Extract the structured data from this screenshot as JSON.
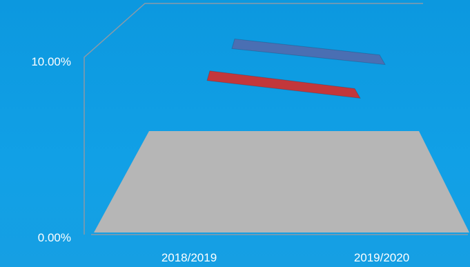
{
  "chart_data": {
    "type": "line",
    "categories": [
      "2018/2019",
      "2019/2020"
    ],
    "y_tick_labels": [
      "0.00%",
      "10.00%"
    ],
    "ylim": [
      0,
      10
    ],
    "grid": false,
    "legend": "none",
    "series": [
      {
        "values": [
          10.8,
          9.9
        ],
        "color": "#4a6fb3"
      },
      {
        "values": [
          9.0,
          8.0
        ],
        "color": "#c3373b"
      }
    ],
    "floor_color": "#b6b6b6",
    "axis_color": "#8a9aa8"
  }
}
